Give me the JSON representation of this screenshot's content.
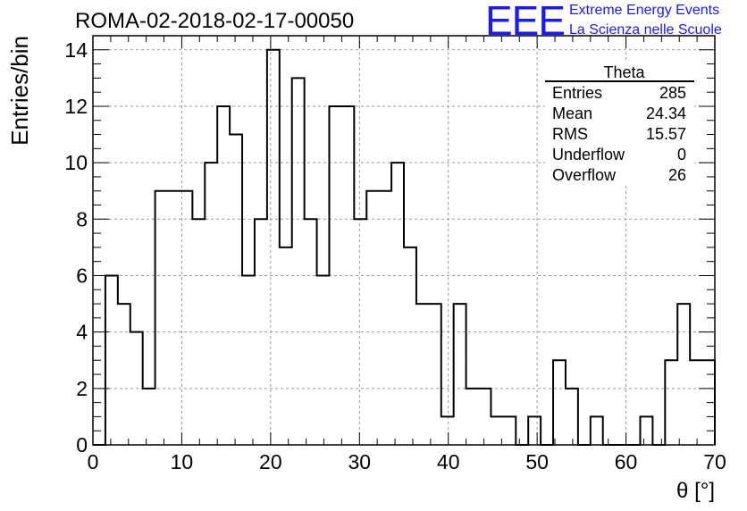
{
  "header": {
    "title": "ROMA-02-2018-02-17-00050",
    "logo_mark": "EEE",
    "logo_line1": "Extreme Energy Events",
    "logo_line2": "La Scienza nelle Scuole"
  },
  "stats_box": {
    "title": "Theta",
    "rows": [
      {
        "label": "Entries",
        "value": "285"
      },
      {
        "label": "Mean",
        "value": "24.34"
      },
      {
        "label": "RMS",
        "value": "15.57"
      },
      {
        "label": "Underflow",
        "value": "0"
      },
      {
        "label": "Overflow",
        "value": "26"
      }
    ]
  },
  "chart_data": {
    "type": "histogram",
    "title": "ROMA-02-2018-02-17-00050",
    "xlabel": "θ [°]",
    "ylabel": "Entries/bin",
    "xlim": [
      0,
      70
    ],
    "ylim": [
      0,
      14.5
    ],
    "bin_width": 1.4,
    "bin_edges_start": 0,
    "values": [
      0,
      6,
      5,
      4,
      2,
      9,
      9,
      9,
      8,
      10,
      12,
      11,
      6,
      8,
      14,
      7,
      13,
      8,
      6,
      12,
      12,
      8,
      9,
      9,
      10,
      7,
      5,
      5,
      1,
      5,
      2,
      2,
      1,
      1,
      0,
      1,
      0,
      3,
      2,
      0,
      1,
      0,
      0,
      0,
      1,
      0,
      3,
      5,
      3,
      3
    ],
    "x_ticks": [
      0,
      10,
      20,
      30,
      40,
      50,
      60,
      70
    ],
    "y_ticks": [
      0,
      2,
      4,
      6,
      8,
      10,
      12,
      14
    ],
    "grid": true,
    "grid_color": "#9a9a9a",
    "line_color": "#000000"
  }
}
